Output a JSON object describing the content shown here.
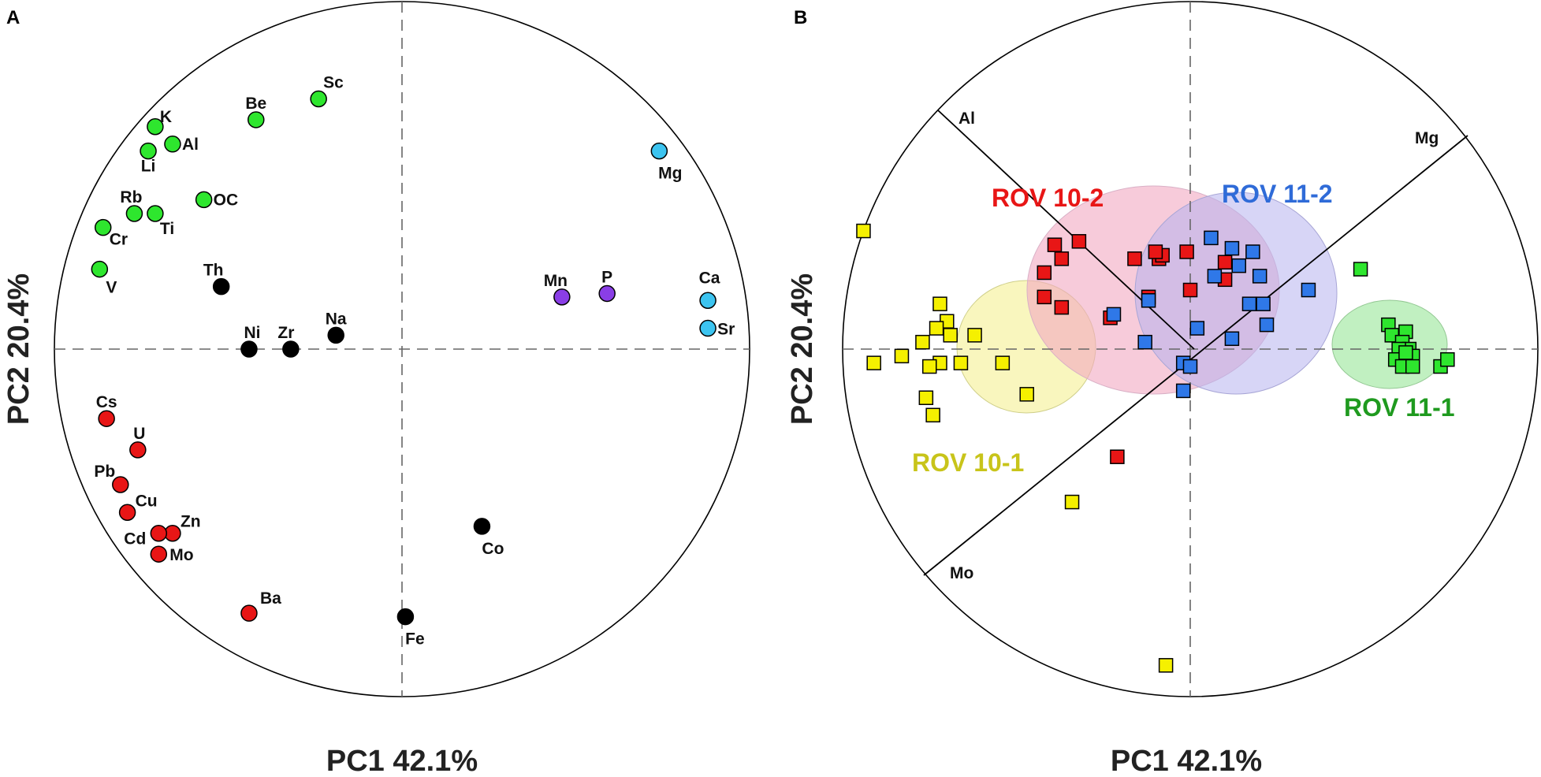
{
  "colors": {
    "green": "#2ee62e",
    "black": "#000000",
    "purple": "#8a3ee6",
    "cyan": "#3cc4f0",
    "red": "#e81616",
    "yellow": "#f5f000",
    "blue": "#2f78e8",
    "ellipse_yellow": "#f7f3a8",
    "ellipse_pink": "#f2a8c2",
    "ellipse_lavender": "#b6b2ee",
    "ellipse_green": "#b2ecb2",
    "label_red": "#e81616",
    "label_blue": "#2f6bd8",
    "label_yellow": "#c8c41a",
    "label_green": "#1f9a1f"
  },
  "chart_data": [
    {
      "type": "scatter",
      "panel": "A",
      "xlabel": "PC1 42.1%",
      "ylabel": "PC2 20.4%",
      "xlim": [
        -1,
        1
      ],
      "ylim": [
        -1,
        1
      ],
      "points": [
        {
          "label": "K",
          "x": -0.71,
          "y": 0.64,
          "group": "green"
        },
        {
          "label": "Li",
          "x": -0.73,
          "y": 0.57,
          "group": "green"
        },
        {
          "label": "Al",
          "x": -0.66,
          "y": 0.59,
          "group": "green"
        },
        {
          "label": "Be",
          "x": -0.42,
          "y": 0.66,
          "group": "green"
        },
        {
          "label": "Sc",
          "x": -0.24,
          "y": 0.72,
          "group": "green"
        },
        {
          "label": "OC",
          "x": -0.57,
          "y": 0.43,
          "group": "green"
        },
        {
          "label": "Rb",
          "x": -0.77,
          "y": 0.39,
          "group": "green"
        },
        {
          "label": "Ti",
          "x": -0.71,
          "y": 0.39,
          "group": "green"
        },
        {
          "label": "Cr",
          "x": -0.86,
          "y": 0.35,
          "group": "green"
        },
        {
          "label": "V",
          "x": -0.87,
          "y": 0.23,
          "group": "green"
        },
        {
          "label": "Th",
          "x": -0.52,
          "y": 0.18,
          "group": "black"
        },
        {
          "label": "Na",
          "x": -0.19,
          "y": 0.04,
          "group": "black"
        },
        {
          "label": "Ni",
          "x": -0.44,
          "y": 0.0,
          "group": "black"
        },
        {
          "label": "Zr",
          "x": -0.32,
          "y": 0.0,
          "group": "black"
        },
        {
          "label": "Co",
          "x": 0.23,
          "y": -0.51,
          "group": "black"
        },
        {
          "label": "Fe",
          "x": 0.01,
          "y": -0.77,
          "group": "black"
        },
        {
          "label": "Mn",
          "x": 0.46,
          "y": 0.15,
          "group": "purple"
        },
        {
          "label": "P",
          "x": 0.59,
          "y": 0.16,
          "group": "purple"
        },
        {
          "label": "Mg",
          "x": 0.74,
          "y": 0.57,
          "group": "cyan"
        },
        {
          "label": "Ca",
          "x": 0.88,
          "y": 0.14,
          "group": "cyan"
        },
        {
          "label": "Sr",
          "x": 0.88,
          "y": 0.06,
          "group": "cyan"
        },
        {
          "label": "Cs",
          "x": -0.85,
          "y": -0.2,
          "group": "red"
        },
        {
          "label": "U",
          "x": -0.76,
          "y": -0.29,
          "group": "red"
        },
        {
          "label": "Pb",
          "x": -0.81,
          "y": -0.39,
          "group": "red"
        },
        {
          "label": "Cu",
          "x": -0.79,
          "y": -0.47,
          "group": "red"
        },
        {
          "label": "Zn",
          "x": -0.66,
          "y": -0.53,
          "group": "red"
        },
        {
          "label": "Cd",
          "x": -0.7,
          "y": -0.53,
          "group": "red"
        },
        {
          "label": "Mo",
          "x": -0.7,
          "y": -0.59,
          "group": "red"
        },
        {
          "label": "Ba",
          "x": -0.44,
          "y": -0.76,
          "group": "red"
        }
      ]
    },
    {
      "type": "scatter",
      "panel": "B",
      "xlabel": "PC1 42.1%",
      "ylabel": "PC2 20.4%",
      "xlim": [
        -1,
        1
      ],
      "ylim": [
        -1,
        1
      ],
      "loading_axes": [
        "Al",
        "Mg",
        "Mo"
      ],
      "groups": [
        {
          "name": "ROV 10-1",
          "color": "yellow"
        },
        {
          "name": "ROV 10-2",
          "color": "red"
        },
        {
          "name": "ROV 11-2",
          "color": "blue"
        },
        {
          "name": "ROV 11-1",
          "color": "green"
        }
      ],
      "series": [
        {
          "name": "ROV 10-1",
          "color": "yellow",
          "points": [
            [
              -0.94,
              0.34
            ],
            [
              -0.72,
              0.13
            ],
            [
              -0.7,
              0.08
            ],
            [
              -0.73,
              0.06
            ],
            [
              -0.69,
              0.04
            ],
            [
              -0.77,
              0.02
            ],
            [
              -0.83,
              -0.02
            ],
            [
              -0.72,
              -0.04
            ],
            [
              -0.91,
              -0.04
            ],
            [
              -0.75,
              -0.05
            ],
            [
              -0.66,
              -0.04
            ],
            [
              -0.62,
              0.04
            ],
            [
              -0.54,
              -0.04
            ],
            [
              -0.76,
              -0.14
            ],
            [
              -0.74,
              -0.19
            ],
            [
              -0.47,
              -0.13
            ],
            [
              -0.34,
              -0.44
            ],
            [
              -0.07,
              -0.91
            ]
          ]
        },
        {
          "name": "ROV 10-2",
          "color": "red",
          "points": [
            [
              -0.39,
              0.3
            ],
            [
              -0.32,
              0.31
            ],
            [
              -0.37,
              0.26
            ],
            [
              -0.42,
              0.22
            ],
            [
              -0.42,
              0.15
            ],
            [
              -0.37,
              0.12
            ],
            [
              -0.23,
              0.09
            ],
            [
              -0.16,
              0.26
            ],
            [
              -0.09,
              0.26
            ],
            [
              -0.08,
              0.27
            ],
            [
              -0.1,
              0.28
            ],
            [
              -0.01,
              0.28
            ],
            [
              0.1,
              0.25
            ],
            [
              0.1,
              0.2
            ],
            [
              -0.12,
              0.15
            ],
            [
              0.0,
              0.17
            ],
            [
              -0.21,
              -0.31
            ]
          ]
        },
        {
          "name": "ROV 11-2",
          "color": "blue",
          "points": [
            [
              0.06,
              0.32
            ],
            [
              0.12,
              0.29
            ],
            [
              0.18,
              0.28
            ],
            [
              0.14,
              0.24
            ],
            [
              0.2,
              0.21
            ],
            [
              0.07,
              0.21
            ],
            [
              -0.12,
              0.14
            ],
            [
              0.17,
              0.13
            ],
            [
              0.21,
              0.13
            ],
            [
              0.34,
              0.17
            ],
            [
              0.22,
              0.07
            ],
            [
              0.02,
              0.06
            ],
            [
              0.12,
              0.03
            ],
            [
              -0.13,
              0.02
            ],
            [
              -0.02,
              -0.04
            ],
            [
              0.0,
              -0.05
            ],
            [
              -0.02,
              -0.12
            ],
            [
              -0.22,
              0.1
            ]
          ]
        },
        {
          "name": "ROV 11-1",
          "color": "green",
          "points": [
            [
              0.49,
              0.23
            ],
            [
              0.57,
              0.07
            ],
            [
              0.62,
              0.05
            ],
            [
              0.58,
              0.04
            ],
            [
              0.61,
              0.02
            ],
            [
              0.63,
              0.0
            ],
            [
              0.6,
              0.0
            ],
            [
              0.64,
              -0.02
            ],
            [
              0.59,
              -0.03
            ],
            [
              0.61,
              -0.05
            ],
            [
              0.64,
              -0.05
            ],
            [
              0.72,
              -0.05
            ],
            [
              0.74,
              -0.03
            ],
            [
              0.62,
              -0.01
            ]
          ]
        }
      ]
    }
  ]
}
